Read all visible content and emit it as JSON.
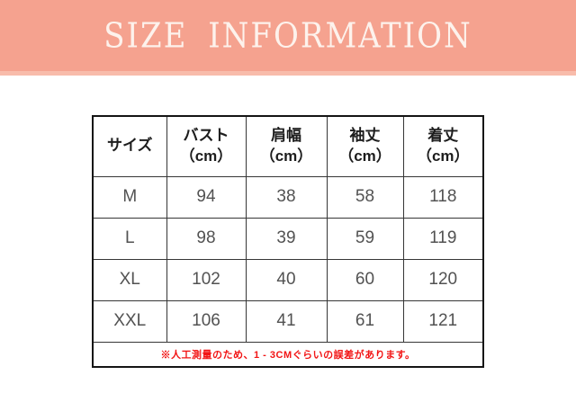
{
  "banner": {
    "title": "SIZE INFORMATION",
    "background_color": "#f5a28f",
    "title_color": "#fdf2ec"
  },
  "size_table": {
    "columns": [
      {
        "label": "サイズ",
        "unit": ""
      },
      {
        "label": "バスト",
        "unit": "（cm）"
      },
      {
        "label": "肩幅",
        "unit": "（cm）"
      },
      {
        "label": "袖丈",
        "unit": "（cm）"
      },
      {
        "label": "着丈",
        "unit": "（cm）"
      }
    ],
    "rows": [
      {
        "size": "M",
        "bust": "94",
        "shoulder": "38",
        "sleeve": "58",
        "length": "118"
      },
      {
        "size": "L",
        "bust": "98",
        "shoulder": "39",
        "sleeve": "59",
        "length": "119"
      },
      {
        "size": "XL",
        "bust": "102",
        "shoulder": "40",
        "sleeve": "60",
        "length": "120"
      },
      {
        "size": "XXL",
        "bust": "106",
        "shoulder": "41",
        "sleeve": "61",
        "length": "121"
      }
    ],
    "note": "※人工測量のため、1 - 3CMぐらいの誤差があります。",
    "note_color": "#f21414"
  }
}
